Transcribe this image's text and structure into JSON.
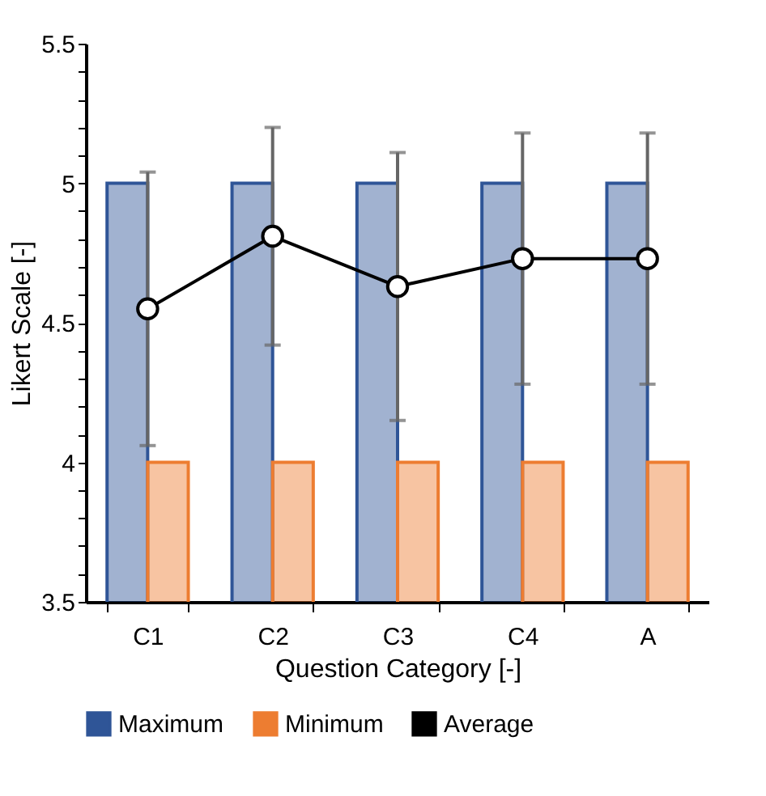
{
  "chart_data": {
    "type": "bar",
    "xlabel": "Question Category [-]",
    "ylabel": "Likert Scale [-]",
    "categories": [
      "C1",
      "C2",
      "C3",
      "C4",
      "A"
    ],
    "series": [
      {
        "name": "Maximum",
        "color": "#2f5597",
        "values": [
          5,
          5,
          5,
          5,
          5
        ]
      },
      {
        "name": "Minimum",
        "color": "#ed7d31",
        "values": [
          4,
          4,
          4,
          4,
          4
        ]
      },
      {
        "name": "Average",
        "type": "line",
        "color": "#000000",
        "marker": "circle",
        "values": [
          4.55,
          4.81,
          4.63,
          4.73,
          4.73
        ],
        "errors": [
          0.49,
          0.39,
          0.48,
          0.45,
          0.45
        ]
      }
    ],
    "ylim": [
      3.5,
      5.5
    ],
    "yticks": [
      3.5,
      {
        "value": 3.6,
        "label": null
      },
      {
        "value": 3.7,
        "label": null
      },
      {
        "value": 3.8,
        "label": null
      },
      {
        "value": 3.9,
        "label": null
      },
      4,
      {
        "value": 4.1,
        "label": null
      },
      {
        "value": 4.2,
        "label": null
      },
      {
        "value": 4.3,
        "label": null
      },
      {
        "value": 4.4,
        "label": null
      },
      4.5,
      {
        "value": 4.6,
        "label": null
      },
      {
        "value": 4.7,
        "label": null
      },
      {
        "value": 4.8,
        "label": null
      },
      {
        "value": 4.9,
        "label": null
      },
      5,
      {
        "value": 5.1,
        "label": null
      },
      {
        "value": 5.2,
        "label": null
      },
      {
        "value": 5.3,
        "label": null
      },
      {
        "value": 5.4,
        "label": null
      },
      5.5
    ],
    "grid": false,
    "legend": "bottom"
  }
}
